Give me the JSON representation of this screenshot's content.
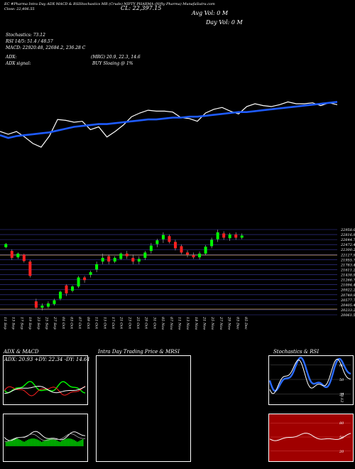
{
  "header": {
    "line1": "EC #Pharma Intra Day ADX MACD & RSIStochastics MR (Crude) NIFTY PHARMA (Nifty Pharma) MunafaSutra.com",
    "line2": "Close: 22,406.55",
    "close_label": "CL: 22,397.15",
    "avg_vol": "Avg Vol: 0   M",
    "day_vol": "Day Vol: 0   M"
  },
  "indicators": {
    "stochastics": "Stochastics: 73.12",
    "rsi": "RSI 14/5: 51.4  / 48.57",
    "macd": "MACD: 22920.48,  22684.2,  236.28  C",
    "adx": "ADX:",
    "mrg": "(MRG) 20.9,  22.3,  14.6",
    "adx_signal": "ADX  signal:",
    "buy_signal": "BUY Sloaing @ 1%"
  },
  "colors": {
    "up": "#00ff00",
    "down": "#ff2020",
    "ema": "#1e5bff",
    "price_line": "#ffffff"
  },
  "chart_data": [
    {
      "type": "line",
      "series": [
        {
          "values": [
            0.5,
            0.47,
            0.5,
            0.44,
            0.37,
            0.33,
            0.45,
            0.63,
            0.62,
            0.6,
            0.61,
            0.52,
            0.55,
            0.44,
            0.5,
            0.57,
            0.66,
            0.7,
            0.73,
            0.72,
            0.72,
            0.71,
            0.65,
            0.64,
            0.61,
            0.7,
            0.74,
            0.76,
            0.72,
            0.69,
            0.77,
            0.8,
            0.78,
            0.77,
            0.79,
            0.82,
            0.8,
            0.8,
            0.81,
            0.78,
            0.81,
            0.79
          ]
        },
        {
          "values": [
            0.46,
            0.43,
            0.45,
            0.46,
            0.47,
            0.48,
            0.49,
            0.51,
            0.53,
            0.55,
            0.56,
            0.57,
            0.58,
            0.58,
            0.59,
            0.6,
            0.61,
            0.62,
            0.63,
            0.63,
            0.64,
            0.65,
            0.65,
            0.66,
            0.66,
            0.67,
            0.68,
            0.69,
            0.7,
            0.71,
            0.71,
            0.72,
            0.73,
            0.74,
            0.75,
            0.76,
            0.77,
            0.78,
            0.79,
            0.8,
            0.81,
            0.82
          ]
        }
      ]
    },
    {
      "type": "candlestick",
      "price_labels": [
        "22958.05",
        "22816.95",
        "22644.70",
        "22472.45",
        "22300.20",
        "22127.95",
        "21955.70",
        "21783.45",
        "21611.20",
        "21438.95",
        "21266.70",
        "21094.45",
        "20922.20",
        "20749.95",
        "20577.70",
        "20405.45",
        "20233.20",
        "20061.50"
      ],
      "x_labels": [
        "11 Sep",
        "13 Sep",
        "17 Sep",
        "19 Sep",
        "23 Sep",
        "25 Sep",
        "27 Sep",
        "01 Oct",
        "03 Oct",
        "07 Oct",
        "09 Oct",
        "11 Oct",
        "15 Oct",
        "17 Oct",
        "21 Oct",
        "23 Oct",
        "25 Oct",
        "29 Oct",
        "31 Oct",
        "05 Nov",
        "07 Nov",
        "11 Nov",
        "13 Nov",
        "18 Nov",
        "21 Nov",
        "25 Nov",
        "27 Nov",
        "29 Nov",
        "03 Dec",
        "05 Dec"
      ],
      "candles": [
        [
          22620,
          22680,
          22700,
          22600
        ],
        [
          22550,
          22420,
          22580,
          22380
        ],
        [
          22430,
          22500,
          22520,
          22400
        ],
        [
          22480,
          22360,
          22500,
          22330
        ],
        [
          22350,
          22080,
          22380,
          22050
        ],
        [
          21600,
          21480,
          21650,
          21450
        ],
        [
          21480,
          21520,
          21560,
          21430
        ],
        [
          21500,
          21560,
          21600,
          21470
        ],
        [
          21550,
          21620,
          21650,
          21520
        ],
        [
          21650,
          21780,
          21800,
          21620
        ],
        [
          21900,
          21750,
          21920,
          21700
        ],
        [
          21800,
          21880,
          21900,
          21770
        ],
        [
          21880,
          22050,
          22080,
          21850
        ],
        [
          22050,
          22000,
          22080,
          21950
        ],
        [
          22100,
          22150,
          22180,
          22050
        ],
        [
          22200,
          22300,
          22350,
          22150
        ],
        [
          22350,
          22420,
          22500,
          22300
        ],
        [
          22450,
          22350,
          22480,
          22300
        ],
        [
          22350,
          22420,
          22450,
          22320
        ],
        [
          22400,
          22500,
          22520,
          22380
        ],
        [
          22500,
          22450,
          22550,
          22400
        ],
        [
          22420,
          22350,
          22480,
          22300
        ],
        [
          22350,
          22400,
          22450,
          22300
        ],
        [
          22420,
          22520,
          22550,
          22380
        ],
        [
          22550,
          22650,
          22700,
          22500
        ],
        [
          22680,
          22750,
          22780,
          22620
        ],
        [
          22770,
          22850,
          22900,
          22700
        ],
        [
          22830,
          22720,
          22860,
          22690
        ],
        [
          22720,
          22600,
          22760,
          22560
        ],
        [
          22640,
          22520,
          22670,
          22490
        ],
        [
          22520,
          22480,
          22560,
          22430
        ],
        [
          22470,
          22430,
          22520,
          22400
        ],
        [
          22430,
          22500,
          22540,
          22390
        ],
        [
          22500,
          22630,
          22660,
          22470
        ],
        [
          22640,
          22760,
          22800,
          22600
        ],
        [
          22770,
          22900,
          22950,
          22720
        ],
        [
          22880,
          22800,
          22920,
          22760
        ],
        [
          22790,
          22860,
          22890,
          22740
        ],
        [
          22860,
          22800,
          22900,
          22760
        ],
        [
          22800,
          22840,
          22880,
          22770
        ]
      ]
    },
    {
      "type": "line",
      "title": "ADX  & MACD",
      "adx_label": "ADX: 20.93  +DY: 22.34  -DY: 14.61"
    },
    {
      "type": "line",
      "title": "Intra  Day Trading Price  & MRSI"
    },
    {
      "type": "line",
      "title": "Stochastics & RSI",
      "ticks": [
        "80",
        "50",
        "20"
      ],
      "value_label": "73.12"
    }
  ]
}
